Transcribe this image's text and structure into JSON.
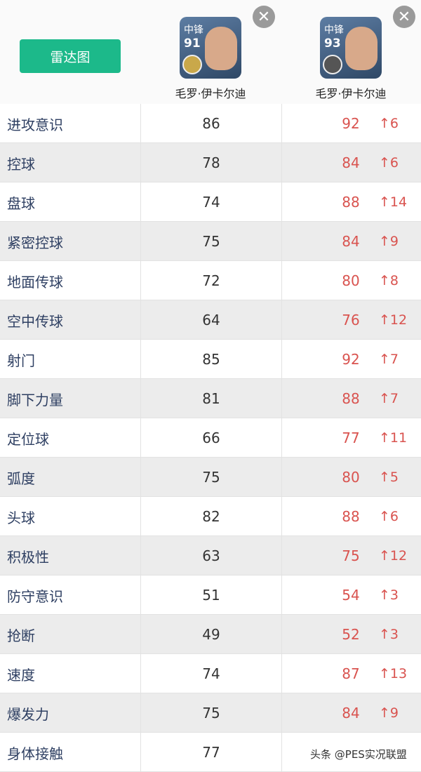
{
  "header": {
    "button": "雷达图",
    "players": [
      {
        "position": "中锋",
        "rating": "91",
        "name": "毛罗·伊卡尔迪"
      },
      {
        "position": "中锋",
        "rating": "93",
        "name": "毛罗·伊卡尔迪"
      }
    ]
  },
  "table": {
    "rows": [
      [
        "进攻意识",
        "86",
        "92",
        "↑6"
      ],
      [
        "控球",
        "78",
        "84",
        "↑6"
      ],
      [
        "盘球",
        "74",
        "88",
        "↑14"
      ],
      [
        "紧密控球",
        "75",
        "84",
        "↑9"
      ],
      [
        "地面传球",
        "72",
        "80",
        "↑8"
      ],
      [
        "空中传球",
        "64",
        "76",
        "↑12"
      ],
      [
        "射门",
        "85",
        "92",
        "↑7"
      ],
      [
        "脚下力量",
        "81",
        "88",
        "↑7"
      ],
      [
        "定位球",
        "66",
        "77",
        "↑11"
      ],
      [
        "弧度",
        "75",
        "80",
        "↑5"
      ],
      [
        "头球",
        "82",
        "88",
        "↑6"
      ],
      [
        "积极性",
        "63",
        "75",
        "↑12"
      ],
      [
        "防守意识",
        "51",
        "54",
        "↑3"
      ],
      [
        "抢断",
        "49",
        "52",
        "↑3"
      ],
      [
        "速度",
        "74",
        "87",
        "↑13"
      ],
      [
        "爆发力",
        "75",
        "84",
        "↑9"
      ],
      [
        "身体接触",
        "77"
      ]
    ]
  },
  "watermark": "头条 @PES实况联盟"
}
